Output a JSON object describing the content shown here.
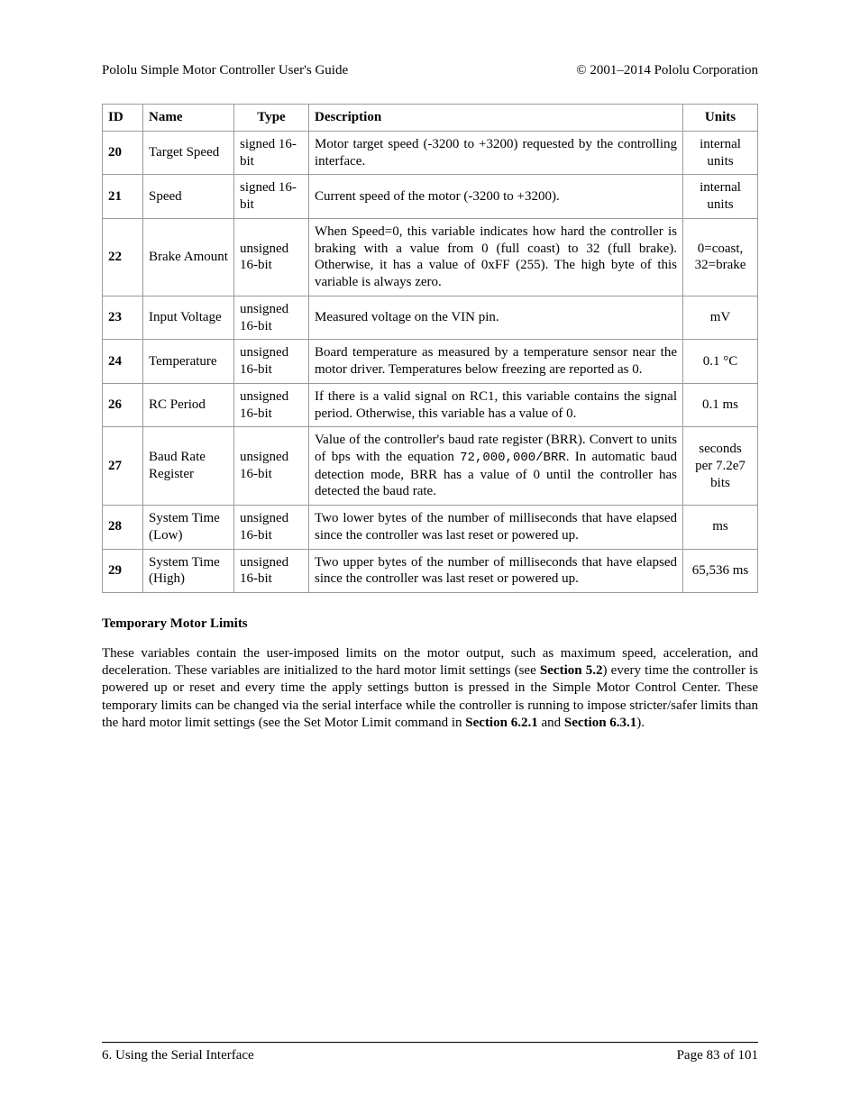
{
  "header": {
    "left": "Pololu Simple Motor Controller User's Guide",
    "right": "© 2001–2014 Pololu Corporation"
  },
  "table": {
    "columns": [
      "ID",
      "Name",
      "Type",
      "Description",
      "Units"
    ],
    "rows": [
      {
        "id": "20",
        "name": "Target Speed",
        "type": "signed 16-bit",
        "desc": "Motor target speed (-3200 to +3200) requested by the controlling interface.",
        "units": "internal units"
      },
      {
        "id": "21",
        "name": "Speed",
        "type": "signed 16-bit",
        "desc": "Current speed of the motor (-3200 to +3200).",
        "units": "internal units"
      },
      {
        "id": "22",
        "name": "Brake Amount",
        "type": "unsigned 16-bit",
        "desc": "When Speed=0, this variable indicates how hard the controller is braking with a value from 0 (full coast) to 32 (full brake). Otherwise, it has a value of 0xFF (255). The high byte of this variable is always zero.",
        "units": "0=coast, 32=brake"
      },
      {
        "id": "23",
        "name": "Input Voltage",
        "type": "unsigned 16-bit",
        "desc": "Measured voltage on the VIN pin.",
        "units": "mV"
      },
      {
        "id": "24",
        "name": "Temperature",
        "type": "unsigned 16-bit",
        "desc": "Board temperature as measured by a temperature sensor near the motor driver. Temperatures below freezing are reported as 0.",
        "units": "0.1 °C"
      },
      {
        "id": "26",
        "name": "RC Period",
        "type": "unsigned 16-bit",
        "desc": "If there is a valid signal on RC1, this variable contains the signal period. Otherwise, this variable has a value of 0.",
        "units": "0.1 ms"
      },
      {
        "id": "27",
        "name": "Baud Rate Register",
        "type": "unsigned 16-bit",
        "desc_pre": "Value of the controller's baud rate register (BRR). Convert to units of bps with the equation ",
        "desc_code": "72,000,000/BRR",
        "desc_post": ". In automatic baud detection mode, BRR has a value of 0 until the controller has detected the baud rate.",
        "units": "seconds per 7.2e7 bits"
      },
      {
        "id": "28",
        "name": "System Time (Low)",
        "type": "unsigned 16-bit",
        "desc": "Two lower bytes of the number of milliseconds that have elapsed since the controller was last reset or powered up.",
        "units": "ms"
      },
      {
        "id": "29",
        "name": "System Time (High)",
        "type": "unsigned 16-bit",
        "desc": "Two upper bytes of the number of milliseconds that have elapsed since the controller was last reset or powered up.",
        "units": "65,536 ms"
      }
    ]
  },
  "section_title": "Temporary Motor Limits",
  "paragraph": {
    "t1": "These variables contain the user-imposed limits on the motor output, such as maximum speed, acceleration, and deceleration. These variables are initialized to the hard motor limit settings (see ",
    "b1": "Section 5.2",
    "t2": ") every time the controller is powered up or reset and every time the apply settings button is pressed in the Simple Motor Control Center. These temporary limits can be changed via the serial interface while the controller is running to impose stricter/safer limits than the hard motor limit settings (see the Set Motor Limit command in ",
    "b2": "Section 6.2.1",
    "t3": " and ",
    "b3": "Section 6.3.1",
    "t4": ")."
  },
  "footer": {
    "left": "6. Using the Serial Interface",
    "right": "Page 83 of 101"
  }
}
